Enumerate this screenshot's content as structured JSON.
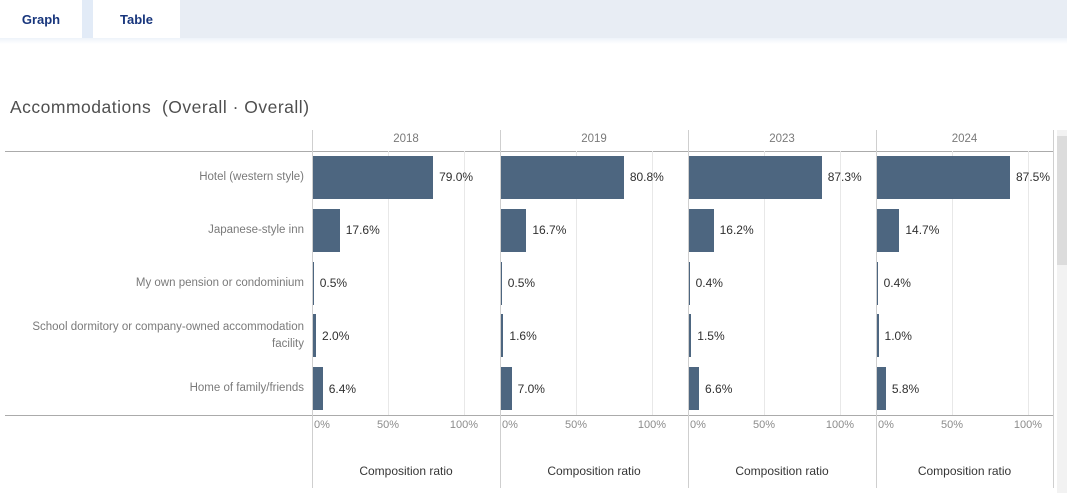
{
  "tabs": [
    {
      "label": "Graph",
      "active": true
    },
    {
      "label": "Table",
      "active": false
    }
  ],
  "title": "Accommodations  (Overall · Overall)",
  "chart_data": {
    "type": "bar",
    "orientation": "horizontal",
    "title": "Accommodations  (Overall · Overall)",
    "categories": [
      "Hotel (western style)",
      "Japanese-style inn",
      "My own pension or condominium",
      "School dormitory or company-owned accommodation facility",
      "Home of family/friends"
    ],
    "series": [
      {
        "name": "2018",
        "values": [
          79.0,
          17.6,
          0.5,
          2.0,
          6.4
        ]
      },
      {
        "name": "2019",
        "values": [
          80.8,
          16.7,
          0.5,
          1.6,
          7.0
        ]
      },
      {
        "name": "2023",
        "values": [
          87.3,
          16.2,
          0.4,
          1.5,
          6.6
        ]
      },
      {
        "name": "2024",
        "values": [
          87.5,
          14.7,
          0.4,
          1.0,
          5.8
        ]
      }
    ],
    "value_suffix": "%",
    "xlabel": "Composition ratio",
    "x_ticks": [
      "0%",
      "50%",
      "100%"
    ],
    "xlim": [
      0,
      100
    ],
    "grid": true,
    "legend_position": "none",
    "bar_color": "#4d6680"
  },
  "scrollbar": {
    "visible": true
  }
}
